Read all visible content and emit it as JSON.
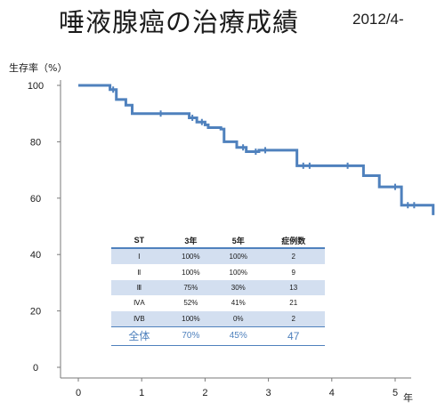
{
  "title": "唾液腺癌の治療成績",
  "date": "2012/4-",
  "chart_data": {
    "type": "line",
    "title": "唾液腺癌の治療成績",
    "ylabel": "生存率（%）",
    "xlabel": "年",
    "xlim": [
      -0.3,
      5.6
    ],
    "ylim": [
      -3,
      104
    ],
    "xticks": [
      "0",
      "1",
      "2",
      "3",
      "4",
      "5"
    ],
    "yticks": [
      "0",
      "20",
      "40",
      "60",
      "80",
      "100"
    ],
    "grid": false,
    "series": [
      {
        "color": "#4f81bd",
        "step_x": [
          0,
          0.5,
          0.6,
          0.75,
          0.85,
          1.25,
          1.75,
          1.87,
          2.0,
          2.05,
          2.25,
          2.3,
          2.5,
          2.65,
          2.85,
          3.45,
          4.3,
          4.5,
          4.75,
          5.1,
          5.6
        ],
        "step_y": [
          100,
          98.5,
          95,
          93,
          90,
          90,
          88.5,
          87,
          86,
          85,
          84.5,
          80,
          78,
          76.5,
          77,
          71.5,
          71.5,
          68,
          64,
          57.5,
          54
        ],
        "censored_x": [
          0.55,
          1.3,
          1.8,
          1.95,
          2.6,
          2.8,
          2.95,
          3.55,
          3.65,
          4.25,
          5.0,
          5.2,
          5.3
        ]
      }
    ],
    "table": {
      "headers": [
        "ST",
        "3年",
        "5年",
        "症例数"
      ],
      "rows": [
        [
          "Ⅰ",
          "100%",
          "100%",
          "2"
        ],
        [
          "Ⅱ",
          "100%",
          "100%",
          "9"
        ],
        [
          "Ⅲ",
          "75%",
          "30%",
          "13"
        ],
        [
          "ⅣA",
          "52%",
          "41%",
          "21"
        ],
        [
          "ⅣB",
          "100%",
          "0%",
          "2"
        ]
      ],
      "total": [
        "全体",
        "70%",
        "45%",
        "47"
      ]
    }
  }
}
